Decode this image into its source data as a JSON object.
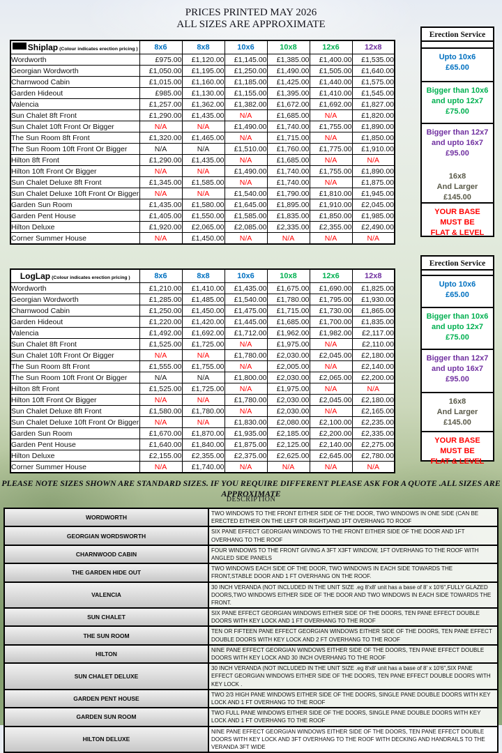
{
  "page": {
    "title_line1": "PRICES PRINTED MAY 2026",
    "title_line2": "ALL SIZES ARE APPROXIMATE"
  },
  "colors": {
    "blue": "#0070c0",
    "green": "#00b050",
    "purple": "#7030a0",
    "red": "#ff0000",
    "olive": "#595948",
    "black": "#151515"
  },
  "size_columns": [
    {
      "label": "8x6",
      "color": "blue"
    },
    {
      "label": "8x8",
      "color": "blue"
    },
    {
      "label": "10x6",
      "color": "blue"
    },
    {
      "label": "10x8",
      "color": "green"
    },
    {
      "label": "12x6",
      "color": "green"
    },
    {
      "label": "12x8",
      "color": "purple"
    }
  ],
  "price_tables": [
    {
      "label": "Shiplap",
      "note": "(Colour indicates erection pricing )",
      "rows": [
        {
          "name": "Wordworth",
          "cells": [
            "£975.00",
            "£1,120.00",
            "£1,145.00",
            "£1,385.00",
            "£1,400.00",
            "£1,535.00"
          ]
        },
        {
          "name": "Georgian Wordworth",
          "cells": [
            "£1,050.00",
            "£1,195.00",
            "£1,250.00",
            "£1,490.00",
            "£1,505.00",
            "£1,640.00"
          ]
        },
        {
          "name": "Charnwood Cabin",
          "cells": [
            "£1,015.00",
            "£1,160.00",
            "£1,185.00",
            "£1,425.00",
            "£1,440.00",
            "£1,575.00"
          ]
        },
        {
          "name": "Garden Hideout",
          "cells": [
            "£985.00",
            "£1,130.00",
            "£1,155.00",
            "£1,395.00",
            "£1,410.00",
            "£1,545.00"
          ]
        },
        {
          "name": "Valencia",
          "cells": [
            "£1,257.00",
            "£1,362.00",
            "£1,382.00",
            "£1,672.00",
            "£1,692.00",
            "£1,827.00"
          ]
        },
        {
          "name": "Sun Chalet 8ft Front",
          "cells": [
            "£1,290.00",
            "£1,435.00",
            "N/A",
            "£1,685.00",
            "N/A",
            "£1,820.00"
          ]
        },
        {
          "name": "Sun Chalet 10ft Front Or Bigger",
          "cells": [
            "N/A",
            "N/A",
            "£1,490.00",
            "£1,740.00",
            "£1,755.00",
            "£1,890.00"
          ]
        },
        {
          "name": "The Sun Room 8ft Front",
          "cells": [
            "£1,320.00",
            "£1,465.00",
            "N/A",
            "£1,715.00",
            "N/A",
            "£1,850.00"
          ]
        },
        {
          "name": "The Sun Room 10ft Front Or Bigger",
          "cells": [
            "N/A",
            "N/A",
            "£1,510.00",
            "£1,760.00",
            "£1,775.00",
            "£1,910.00"
          ],
          "black_na": [
            0,
            1
          ]
        },
        {
          "name": "Hilton 8ft Front",
          "cells": [
            "£1,290.00",
            "£1,435.00",
            "N/A",
            "£1,685.00",
            "N/A",
            "N/A"
          ]
        },
        {
          "name": "Hilton 10ft Front Or Bigger",
          "cells": [
            "N/A",
            "N/A",
            "£1,490.00",
            "£1,740.00",
            "£1,755.00",
            "£1,890.00"
          ]
        },
        {
          "name": "Sun Chalet Deluxe 8ft Front",
          "cells": [
            "£1,345.00",
            "£1,585.00",
            "N/A",
            "£1,740.00",
            "N/A",
            "£1,875.00"
          ]
        },
        {
          "name": "Sun Chalet Deluxe 10ft Front Or Bigger",
          "cells": [
            "N/A",
            "N/A",
            "£1,540.00",
            "£1,790.00",
            "£1,810.00",
            "£1,945.00"
          ]
        },
        {
          "name": "Garden Sun Room",
          "cells": [
            "£1,435.00",
            "£1,580.00",
            "£1,645.00",
            "£1,895.00",
            "£1,910.00",
            "£2,045.00"
          ]
        },
        {
          "name": "Garden Pent House",
          "cells": [
            "£1,405.00",
            "£1,550.00",
            "£1,585.00",
            "£1,835.00",
            "£1,850.00",
            "£1,985.00"
          ]
        },
        {
          "name": "Hilton Deluxe",
          "cells": [
            "£1,920.00",
            "£2,065.00",
            "£2,085.00",
            "£2,335.00",
            "£2,355.00",
            "£2,490.00"
          ]
        },
        {
          "name": "Corner Summer House",
          "cells": [
            "N/A",
            "£1,450.00",
            "N/A",
            "N/A",
            "N/A",
            "N/A"
          ]
        }
      ]
    },
    {
      "label": "LogLap",
      "note": "(Colour indicates erection pricing )",
      "rows": [
        {
          "name": "Wordworth",
          "cells": [
            "£1,210.00",
            "£1,410.00",
            "£1,435.00",
            "£1,675.00",
            "£1,690.00",
            "£1,825.00"
          ]
        },
        {
          "name": "Georgian Wordworth",
          "cells": [
            "£1,285.00",
            "£1,485.00",
            "£1,540.00",
            "£1,780.00",
            "£1,795.00",
            "£1,930.00"
          ]
        },
        {
          "name": "Charnwood Cabin",
          "cells": [
            "£1,250.00",
            "£1,450.00",
            "£1,475.00",
            "£1,715.00",
            "£1,730.00",
            "£1,865.00"
          ]
        },
        {
          "name": "Garden Hideout",
          "cells": [
            "£1,220.00",
            "£1,420.00",
            "£1,445.00",
            "£1,685.00",
            "£1,700.00",
            "£1,835.00"
          ]
        },
        {
          "name": "Valencia",
          "cells": [
            "£1,492.00",
            "£1,692.00",
            "£1,712.00",
            "£1,962.00",
            "£1,982.00",
            "£2,117.00"
          ]
        },
        {
          "name": "Sun Chalet 8ft Front",
          "cells": [
            "£1,525.00",
            "£1,725.00",
            "N/A",
            "£1,975.00",
            "N/A",
            "£2,110.00"
          ]
        },
        {
          "name": "Sun Chalet 10ft Front Or Bigger",
          "cells": [
            "N/A",
            "N/A",
            "£1,780.00",
            "£2,030.00",
            "£2,045.00",
            "£2,180.00"
          ]
        },
        {
          "name": "The Sun Room 8ft Front",
          "cells": [
            "£1,555.00",
            "£1,755.00",
            "N/A",
            "£2,005.00",
            "N/A",
            "£2,140.00"
          ]
        },
        {
          "name": "The Sun Room 10ft Front Or Bigger",
          "cells": [
            "N/A",
            "N/A",
            "£1,800.00",
            "£2,030.00",
            "£2,065.00",
            "£2,200.00"
          ],
          "black_na": [
            0,
            1
          ]
        },
        {
          "name": "Hilton 8ft Front",
          "cells": [
            "£1,525.00",
            "£1,725.00",
            "N/A",
            "£1,975.00",
            "N/A",
            "N/A"
          ]
        },
        {
          "name": "Hilton 10ft Front Or Bigger",
          "cells": [
            "N/A",
            "N/A",
            "£1,780.00",
            "£2,030.00",
            "£2,045.00",
            "£2,180.00"
          ]
        },
        {
          "name": "Sun Chalet Deluxe 8ft Front",
          "cells": [
            "£1,580.00",
            "£1,780.00",
            "N/A",
            "£2,030.00",
            "N/A",
            "£2,165.00"
          ]
        },
        {
          "name": "Sun Chalet Deluxe 10ft Front Or Bigger",
          "cells": [
            "N/A",
            "N/A",
            "£1,830.00",
            "£2,080.00",
            "£2,100.00",
            "£2,235.00"
          ]
        },
        {
          "name": "Garden Sun Room",
          "cells": [
            "£1,670.00",
            "£1,870.00",
            "£1,935.00",
            "£2,185.00",
            "£2,200.00",
            "£2,335.00"
          ]
        },
        {
          "name": "Garden Pent House",
          "cells": [
            "£1,640.00",
            "£1,840.00",
            "£1,875.00",
            "£2,125.00",
            "£2,140.00",
            "£2,275.00"
          ]
        },
        {
          "name": "Hilton Deluxe",
          "cells": [
            "£2,155.00",
            "£2,355.00",
            "£2,375.00",
            "£2,625.00",
            "£2,645.00",
            "£2,780.00"
          ]
        },
        {
          "name": "Corner Summer House",
          "cells": [
            "N/A",
            "£1,740.00",
            "N/A",
            "N/A",
            "N/A",
            "N/A"
          ]
        }
      ]
    }
  ],
  "erection_service": {
    "title": "Erection Service",
    "sections": [
      {
        "lines": [
          "Upto 10x6",
          "£65.00"
        ],
        "color": "blue"
      },
      {
        "lines": [
          "Bigger than 10x6",
          "and upto 12x7",
          "£75.00"
        ],
        "color": "green"
      },
      {
        "lines": [
          "Bigger than 12x7",
          "and upto 16x7",
          "£95.00"
        ],
        "color": "purple"
      },
      {
        "lines": [
          "16x8",
          "And Larger",
          "£145.00"
        ],
        "color": "olive"
      },
      {
        "lines": [
          "YOUR BASE",
          "MUST BE",
          "FLAT & LEVEL"
        ],
        "color": "red"
      }
    ]
  },
  "notice": "PLEASE NOTE SIZES SHOWN ARE STANDARD SIZES. IF YOU REQUIRE DIFFERENT PLEASE ASK FOR A QUOTE .ALL SIZES ARE APPROXIMATE",
  "description_table": {
    "title": "DESCRIPTION",
    "rows": [
      {
        "name": "WORDWORTH",
        "desc": "TWO  WINDOWS TO THE FRONT EITHER SIDE OF THE DOOR, TWO WINDOWS IN ONE SIDE (CAN BE ERECTED EITHER ON THE  LEFT OR RIGHT)AND 1FT OVERHANG TO ROOF"
      },
      {
        "name": "GEORGIAN WORDSWORTH",
        "desc": "SIX PANE EFFECT GEORGIAN WINDOWS TO THE FRONT EITHER SIDE OF THE DOOR AND 1FT OVERHANG TO THE ROOF"
      },
      {
        "name": "CHARNWOOD CABIN",
        "desc": "FOUR WINDOWS TO THE FRONT GIVING A 3FT X3FT WINDOW, 1FT OVERHANG TO THE ROOF WITH ANGLED SIDE PANELS"
      },
      {
        "name": "THE GARDEN HIDE OUT",
        "desc": "TWO WINDOWS EACH SIDE OF THE DOOR, TWO WINDOWS IN EACH SIDE TOWARDS THE FRONT,STABLE DOOR AND 1 FT OVERHANG ON THE ROOF."
      },
      {
        "name": "VALENCIA",
        "desc": "30 INCH VERANDA (NOT INCLUDED IN THE UNIT SIZE .eg 8'x8' unit has a base of 8' x 10'6\",FULLY GLAZED DOORS,TWO   WINDOWS EITHER SIDE OF THE DOOR AND TWO WINDOWS IN EACH SIDE TOWARDS THE FRONT."
      },
      {
        "name": "SUN CHALET",
        "desc": "SIX PANE EFFECT GEORGIAN WINDOWS EITHER SIDE OF THE DOORS, TEN PANE EFFECT DOUBLE DOORS WITH KEY LOCK  AND 1 FT OVERHANG TO THE ROOF"
      },
      {
        "name": "THE SUN ROOM",
        "desc": "TEN OR FIFTEEN  PANE EFFECT GEORGIAN WINDOWS EITHER SIDE OF THE DOORS, TEN PANE EFFECT DOUBLE DOORS WITH KEY LOCK AND 2 FT OVERHANG TO THE ROOF"
      },
      {
        "name": "HILTON",
        "desc": "NINE PANE EFFECT GEORGIAN WINDOWS EITHER SIDE OF THE DOORS, TEN PANE EFFECT DOUBLE DOORS WITH KEY LOCK AND 30 INCH OVERHANG TO THE ROOF"
      },
      {
        "name": "SUN CHALET DELUXE",
        "desc": "30 INCH VERANDA (NOT INCLUDED IN THE UNIT SIZE .eg 8'x8' unit has a base of 8' x 10'6\",SIX PANE EFFECT GEORGIAN  WINDOWS EITHER SIDE OF THE DOORS, TEN PANE EFFECT DOUBLE DOORS WITH KEY LOCK ."
      },
      {
        "name": "GARDEN PENT HOUSE",
        "desc": "TWO  2/3 HIGH  PANE WINDOWS EITHER SIDE OF THE DOORS, SINGLE PANE DOUBLE DOORS WITH KEY LOCK AND 1 FT OVERHANG TO THE ROOF"
      },
      {
        "name": "GARDEN SUN ROOM",
        "desc": "TWO FULL PANE WINDOWS EITHER SIDE OF THE DOORS, SINGLE PANE DOUBLE DOORS WITH KEY LOCK AND 1 FT        OVERHANG TO THE ROOF"
      },
      {
        "name": "HILTON DELUXE",
        "desc": "NINE PANE EFFECT GEORGIAN WINDOWS EITHER SIDE OF THE DOORS, TEN PANE EFFECT DOUBLE DOORS WITH KEY LOCK AND 3FT OVERHANG TO THE ROOF WITH DECKING AND HANDRAILS TO THE VERANDA 3FT WIDE"
      }
    ]
  }
}
